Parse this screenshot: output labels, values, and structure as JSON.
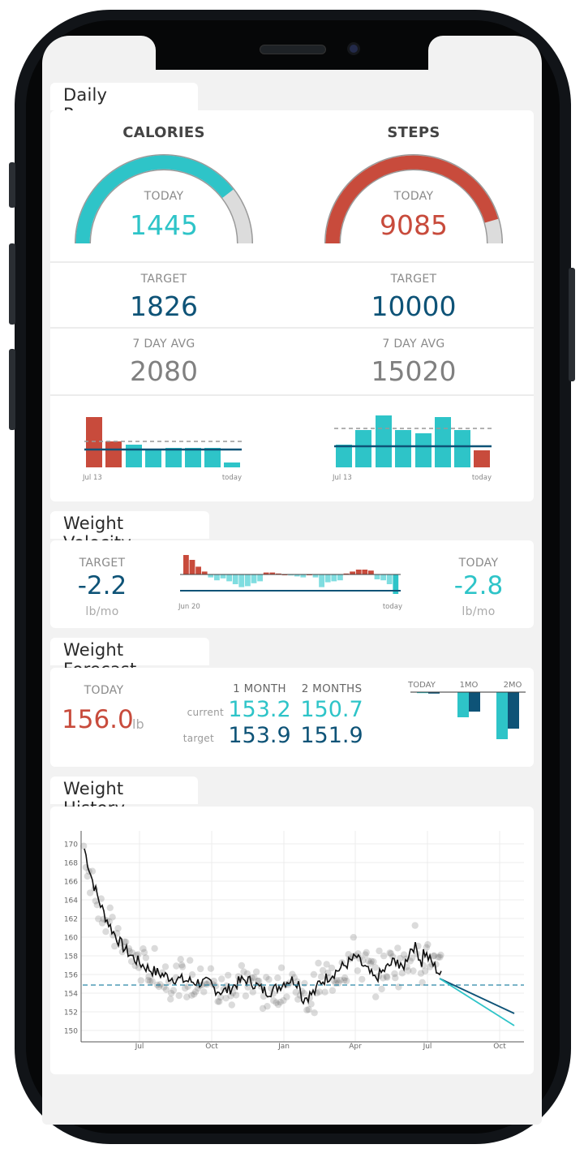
{
  "daily_progress": {
    "title": "Daily Progress",
    "calories": {
      "heading": "CALORIES",
      "today_label": "TODAY",
      "today_value": "1445",
      "gauge_fraction": 0.79,
      "target_label": "TARGET",
      "target_value": "1826",
      "avg_label": "7 DAY AVG",
      "avg_value": "2080",
      "chart_start": "Jul 13",
      "chart_end": "today"
    },
    "steps": {
      "heading": "STEPS",
      "today_label": "TODAY",
      "today_value": "9085",
      "gauge_fraction": 0.91,
      "target_label": "TARGET",
      "target_value": "10000",
      "avg_label": "7 DAY AVG",
      "avg_value": "15020",
      "chart_start": "Jul 13",
      "chart_end": "today"
    }
  },
  "weight_velocity": {
    "title": "Weight Velocity",
    "target_label": "TARGET",
    "target_value": "-2.2",
    "target_unit": "lb/mo",
    "today_label": "TODAY",
    "today_value": "-2.8",
    "today_unit": "lb/mo",
    "chart_start": "Jun 20",
    "chart_end": "today"
  },
  "weight_forecast": {
    "title": "Weight Forecast",
    "today_label": "TODAY",
    "today_value": "156.0",
    "today_unit": "lb",
    "col1_label": "1 MONTH",
    "col2_label": "2 MONTHS",
    "current_label": "current",
    "target_label": "target",
    "current_1m": "153.2",
    "current_2m": "150.7",
    "target_1m": "153.9",
    "target_2m": "151.9",
    "chart_labels": [
      "TODAY",
      "1MO",
      "2MO"
    ]
  },
  "weight_history": {
    "title": "Weight History",
    "y_ticks": [
      "170",
      "168",
      "166",
      "164",
      "162",
      "160",
      "158",
      "156",
      "154",
      "152",
      "150"
    ],
    "x_ticks": [
      "Jul",
      "Oct",
      "Jan",
      "Apr",
      "Jul",
      "Oct"
    ]
  },
  "colors": {
    "teal": "#2ec4c8",
    "red": "#c84b3c",
    "navy": "#0e5377",
    "gray": "#808080",
    "light_gray": "#d8d8d8"
  }
}
